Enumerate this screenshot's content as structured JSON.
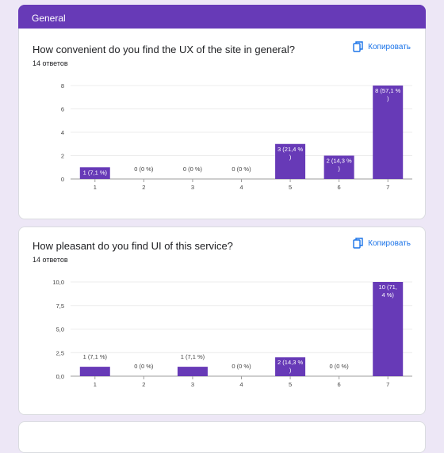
{
  "section": {
    "title": "General"
  },
  "copy_icon": "copy-icon",
  "colors": {
    "accent": "#673ab7",
    "bar": "#673ab7",
    "link": "#1a73e8"
  },
  "questions": [
    {
      "title": "How convenient do you find the UX of the site in general?",
      "count": "14 ответов",
      "copy_label": "Копировать"
    },
    {
      "title": "How pleasant do you find UI of this service?",
      "count": "14 ответов",
      "copy_label": "Копировать"
    }
  ],
  "chart_data": [
    {
      "type": "bar",
      "categories": [
        "1",
        "2",
        "3",
        "4",
        "5",
        "6",
        "7"
      ],
      "values": [
        1,
        0,
        0,
        0,
        3,
        2,
        8
      ],
      "data_labels": [
        "1 (7,1 %)",
        "0 (0 %)",
        "0 (0 %)",
        "0 (0 %)",
        "3 (21,4 %\n)",
        "2 (14,3 %\n)",
        "8 (57,1 %\n)"
      ],
      "yticks": [
        "0",
        "2",
        "4",
        "6",
        "8"
      ],
      "ylim": [
        0,
        8
      ],
      "grid": true
    },
    {
      "type": "bar",
      "categories": [
        "1",
        "2",
        "3",
        "4",
        "5",
        "6",
        "7"
      ],
      "values": [
        1,
        0,
        1,
        0,
        2,
        0,
        10
      ],
      "data_labels": [
        "1 (7,1 %)",
        "0 (0 %)",
        "1 (7,1 %)",
        "0 (0 %)",
        "2 (14,3 %\n)",
        "0 (0 %)",
        "10 (71,\n4 %)"
      ],
      "yticks": [
        "0,0",
        "2,5",
        "5,0",
        "7,5",
        "10,0"
      ],
      "ylim": [
        0,
        10
      ],
      "grid": true
    }
  ]
}
